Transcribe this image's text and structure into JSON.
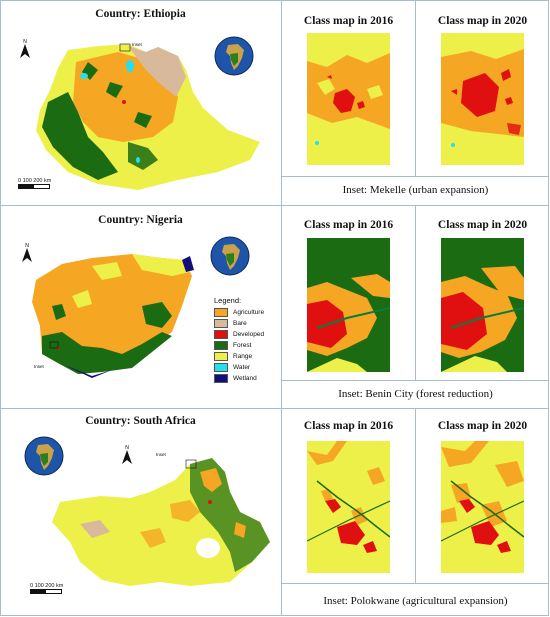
{
  "rows": [
    {
      "country_title": "Country: Ethiopia",
      "map_2016_title": "Class map in 2016",
      "map_2020_title": "Class map in 2020",
      "inset_caption": "Inset: Mekelle (urban expansion)",
      "inset_marker": "Inset",
      "scale_text": "0   100   200 km"
    },
    {
      "country_title": "Country: Nigeria",
      "map_2016_title": "Class map in 2016",
      "map_2020_title": "Class map in 2020",
      "inset_caption": "Inset: Benin City (forest reduction)",
      "inset_marker": "Inset"
    },
    {
      "country_title": "Country: South Africa",
      "map_2016_title": "Class map in 2016",
      "map_2020_title": "Class map in 2020",
      "inset_caption": "Inset: Polokwane (agricultural expansion)",
      "inset_marker": "Inset",
      "scale_text": "0   100   200 km"
    }
  ],
  "legend": {
    "title": "Legend:",
    "items": [
      {
        "label": "Agriculture",
        "color": "#f5a623"
      },
      {
        "label": "Bare",
        "color": "#d9b99b"
      },
      {
        "label": "Developed",
        "color": "#e01010"
      },
      {
        "label": "Forest",
        "color": "#1a6b12"
      },
      {
        "label": "Range",
        "color": "#eef04a"
      },
      {
        "label": "Water",
        "color": "#22e0f0"
      },
      {
        "label": "Wetland",
        "color": "#10107a"
      }
    ]
  },
  "north_label": "N"
}
